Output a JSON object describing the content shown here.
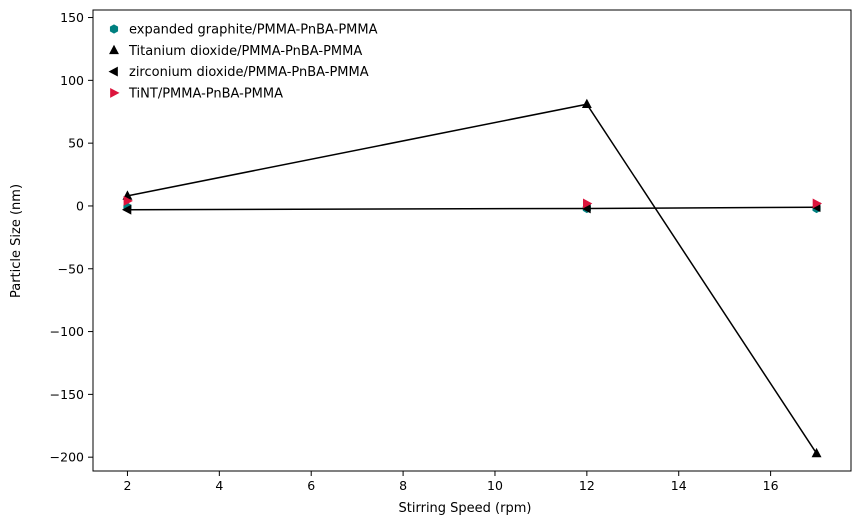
{
  "chart_data": {
    "type": "scatter",
    "title": "",
    "xlabel": "Stirring Speed (rpm)",
    "ylabel": "Particle Size (nm)",
    "xlim": [
      1.25,
      17.75
    ],
    "ylim": [
      -211,
      156
    ],
    "xticks": [
      2,
      4,
      6,
      8,
      10,
      12,
      14,
      16
    ],
    "yticks": [
      -200,
      -150,
      -100,
      -50,
      0,
      50,
      100,
      150
    ],
    "ytick_labels": [
      "−200",
      "−150",
      "−100",
      "−50",
      "0",
      "50",
      "100",
      "150"
    ],
    "grid": false,
    "legend_position": "top-left",
    "series": [
      {
        "name": "expanded graphite/PMMA-PnBA-PMMA",
        "marker": "hexagon",
        "color": "#008080",
        "connected": false,
        "x": [
          2,
          12,
          17
        ],
        "y": [
          -1,
          -2,
          -2
        ]
      },
      {
        "name": "Titanium dioxide/PMMA-PnBA-PMMA",
        "marker": "triangle-up",
        "color": "#000000",
        "connected": true,
        "x": [
          2,
          12,
          17
        ],
        "y": [
          8,
          81,
          -197
        ]
      },
      {
        "name": "zirconium dioxide/PMMA-PnBA-PMMA",
        "marker": "triangle-left",
        "color": "#000000",
        "connected": true,
        "x": [
          2,
          12,
          17
        ],
        "y": [
          -3,
          -2,
          -1
        ]
      },
      {
        "name": "TiNT/PMMA-PnBA-PMMA",
        "marker": "triangle-right",
        "color": "#dc143c",
        "connected": false,
        "x": [
          2,
          12,
          17
        ],
        "y": [
          4,
          2,
          2
        ]
      }
    ]
  }
}
